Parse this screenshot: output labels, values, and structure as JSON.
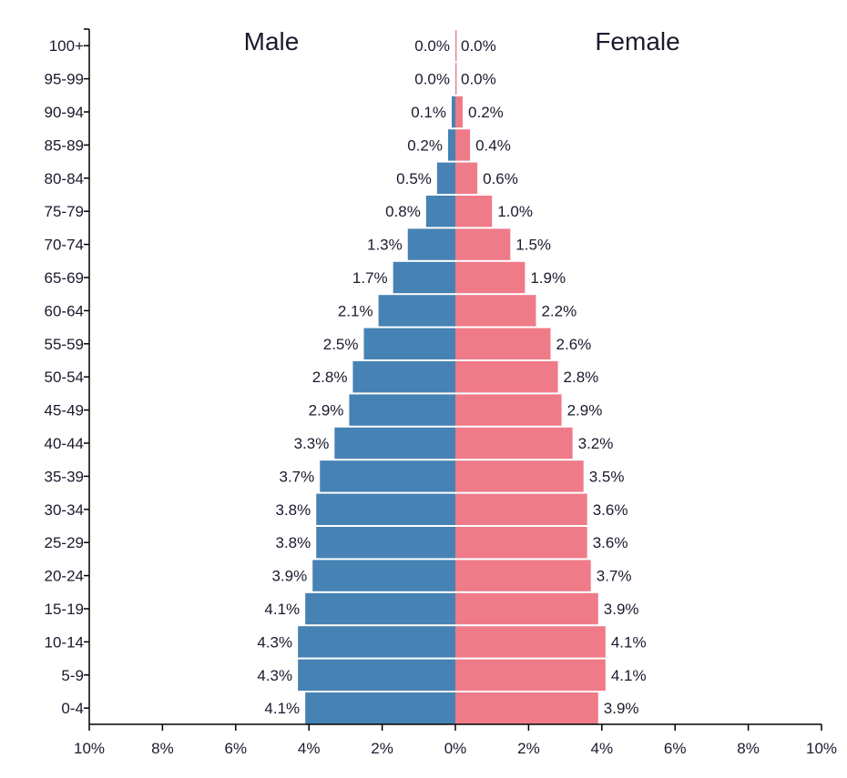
{
  "chart_data": {
    "type": "bar",
    "orientation": "horizontal",
    "categories": [
      "0-4",
      "5-9",
      "10-14",
      "15-19",
      "20-24",
      "25-29",
      "30-34",
      "35-39",
      "40-44",
      "45-49",
      "50-54",
      "55-59",
      "60-64",
      "65-69",
      "70-74",
      "75-79",
      "80-84",
      "85-89",
      "90-94",
      "95-99",
      "100+"
    ],
    "series": [
      {
        "name": "Male",
        "color": "#4682b4",
        "side": "left",
        "values": [
          4.1,
          4.3,
          4.3,
          4.1,
          3.9,
          3.8,
          3.8,
          3.7,
          3.3,
          2.9,
          2.8,
          2.5,
          2.1,
          1.7,
          1.3,
          0.8,
          0.5,
          0.2,
          0.1,
          0.0,
          0.0
        ],
        "labels": [
          "4.1%",
          "4.3%",
          "4.3%",
          "4.1%",
          "3.9%",
          "3.8%",
          "3.8%",
          "3.7%",
          "3.3%",
          "2.9%",
          "2.8%",
          "2.5%",
          "2.1%",
          "1.7%",
          "1.3%",
          "0.8%",
          "0.5%",
          "0.2%",
          "0.1%",
          "0.0%",
          "0.0%"
        ]
      },
      {
        "name": "Female",
        "color": "#ef7b88",
        "side": "right",
        "values": [
          3.9,
          4.1,
          4.1,
          3.9,
          3.7,
          3.6,
          3.6,
          3.5,
          3.2,
          2.9,
          2.8,
          2.6,
          2.2,
          1.9,
          1.5,
          1.0,
          0.6,
          0.4,
          0.2,
          0.0,
          0.0
        ],
        "labels": [
          "3.9%",
          "4.1%",
          "4.1%",
          "3.9%",
          "3.7%",
          "3.6%",
          "3.6%",
          "3.5%",
          "3.2%",
          "2.9%",
          "2.8%",
          "2.6%",
          "2.2%",
          "1.9%",
          "1.5%",
          "1.0%",
          "0.6%",
          "0.4%",
          "0.2%",
          "0.0%",
          "0.0%"
        ]
      }
    ],
    "x_range": [
      -10,
      10
    ],
    "x_ticks": [
      -10,
      -8,
      -6,
      -4,
      -2,
      0,
      2,
      4,
      6,
      8,
      10
    ],
    "x_tick_labels": [
      "10%",
      "8%",
      "6%",
      "4%",
      "2%",
      "0%",
      "2%",
      "4%",
      "6%",
      "8%",
      "10%"
    ],
    "grid": false,
    "legend_placement": "top",
    "axis_color": "#000000",
    "text_color": "#1a1a2e"
  }
}
